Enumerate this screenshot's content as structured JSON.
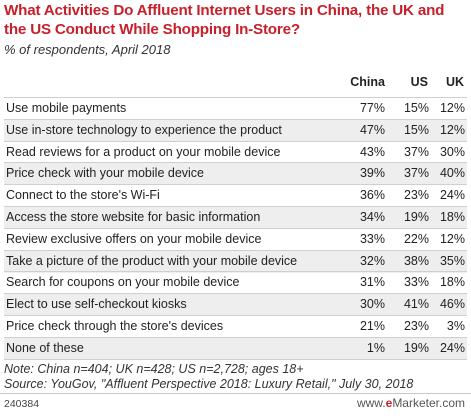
{
  "title": "What Activities Do Affluent Internet Users in China, the UK and the US Conduct While Shopping In-Store?",
  "subtitle": "% of respondents, April 2018",
  "note": "Note: China n=404; UK n=428; US n=2,728; ages 18+",
  "source": "Source: YouGov, \"Affluent Perspective 2018: Luxury Retail,\" July 30, 2018",
  "chart_id": "240384",
  "brand": {
    "prefix": "www.",
    "e": "e",
    "rest": "Marketer.com"
  },
  "chart_data": {
    "type": "table",
    "columns": [
      "China",
      "US",
      "UK"
    ],
    "rows": [
      {
        "label": "Use mobile payments",
        "values": [
          "77%",
          "15%",
          "12%"
        ]
      },
      {
        "label": "Use in-store technology to experience the product",
        "values": [
          "47%",
          "15%",
          "12%"
        ]
      },
      {
        "label": "Read reviews for a product on your mobile device",
        "values": [
          "43%",
          "37%",
          "30%"
        ]
      },
      {
        "label": "Price check with your mobile device",
        "values": [
          "39%",
          "37%",
          "40%"
        ]
      },
      {
        "label": "Connect to the store's Wi-Fi",
        "values": [
          "36%",
          "23%",
          "24%"
        ]
      },
      {
        "label": "Access the store website for basic information",
        "values": [
          "34%",
          "19%",
          "18%"
        ]
      },
      {
        "label": "Review exclusive offers on your mobile device",
        "values": [
          "33%",
          "22%",
          "12%"
        ]
      },
      {
        "label": "Take a picture of the product with your mobile device",
        "values": [
          "32%",
          "38%",
          "35%"
        ]
      },
      {
        "label": "Search for coupons on your mobile device",
        "values": [
          "31%",
          "33%",
          "18%"
        ]
      },
      {
        "label": "Elect to use self-checkout kiosks",
        "values": [
          "30%",
          "41%",
          "46%"
        ]
      },
      {
        "label": "Price check through the store's devices",
        "values": [
          "21%",
          "23%",
          "3%"
        ]
      },
      {
        "label": "None of these",
        "values": [
          "1%",
          "19%",
          "24%"
        ]
      }
    ]
  }
}
